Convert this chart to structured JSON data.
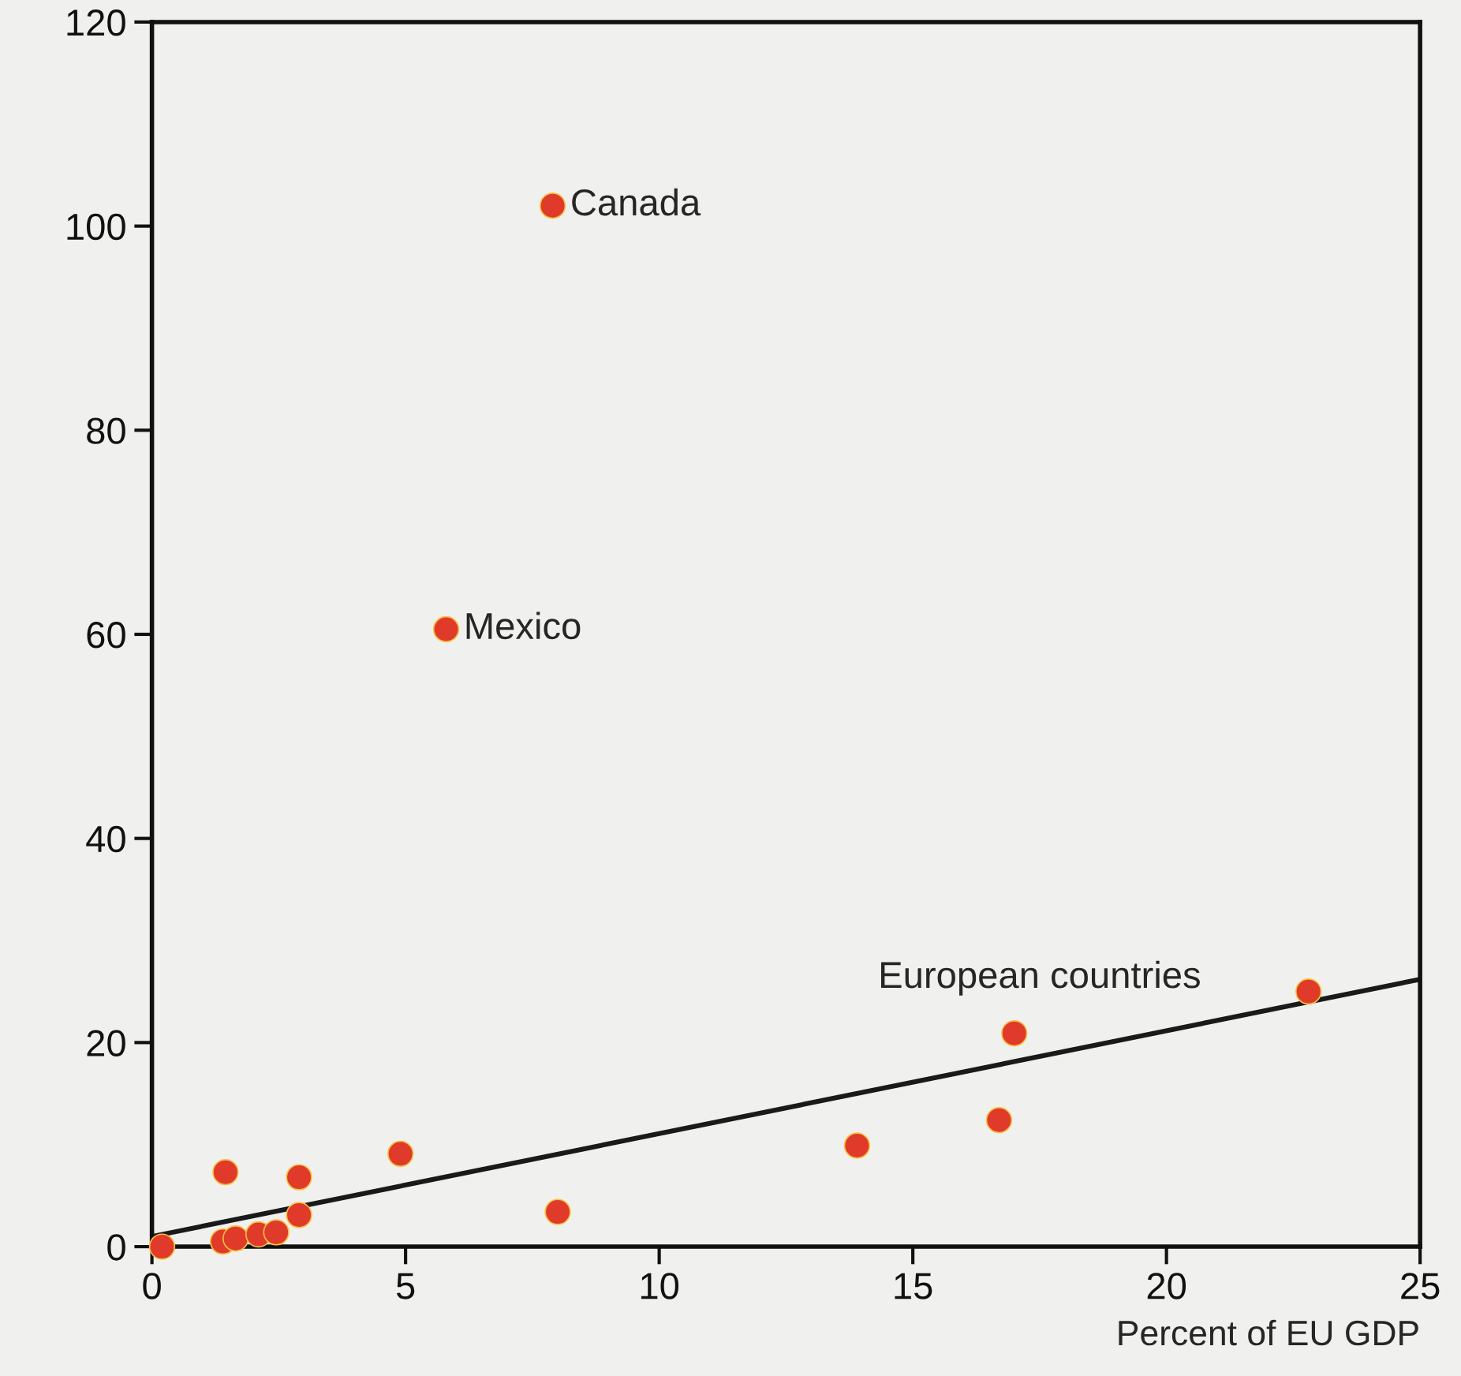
{
  "chart_data": {
    "type": "scatter",
    "xlabel": "Percent of EU GDP",
    "xlim": [
      0,
      25
    ],
    "xticks": [
      0,
      5,
      10,
      15,
      20,
      25
    ],
    "ylim": [
      0,
      120
    ],
    "yticks": [
      0,
      20,
      40,
      60,
      80,
      100,
      120
    ],
    "grid": false,
    "marker": "circle",
    "series": [
      {
        "color": "#e03a2a",
        "x": [
          7.9,
          5.8,
          13.9,
          16.7,
          17.0,
          22.8,
          0.2,
          1.45,
          2.9,
          4.9,
          8.0,
          2.9,
          1.4,
          1.65,
          2.1,
          2.45
        ],
        "values": [
          102,
          60.5,
          9.9,
          12.4,
          20.9,
          25.0,
          0,
          7.3,
          6.8,
          9.1,
          3.4,
          3.1,
          0.5,
          0.8,
          1.2,
          1.4
        ]
      },
      {
        "type": "line",
        "color": "#1a1a1a",
        "marker": "none",
        "line_style": "solid",
        "x": [
          0,
          25
        ],
        "values": [
          1.0,
          26.2
        ]
      }
    ],
    "annotations": [
      {
        "text": "Canada",
        "x": 7.9,
        "y": 102
      },
      {
        "text": "Mexico",
        "x": 5.8,
        "y": 60.5
      },
      "European countries"
    ]
  }
}
